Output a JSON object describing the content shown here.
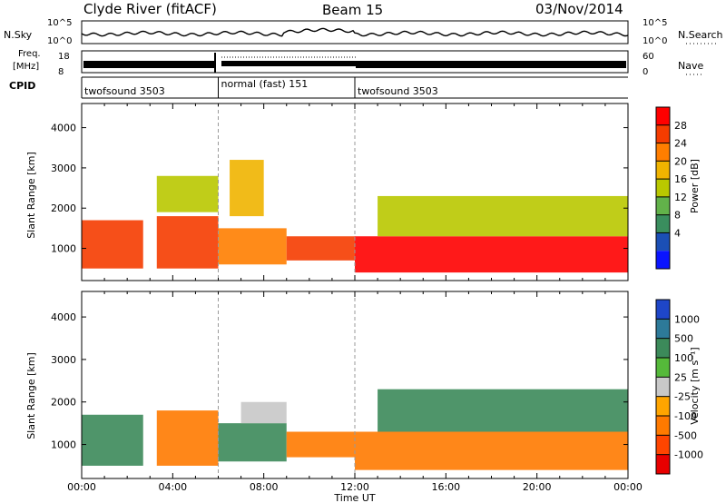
{
  "header": {
    "station": "Clyde River (fitACF)",
    "beam": "Beam 15",
    "date": "03/Nov/2014"
  },
  "top_panels": {
    "nsky_label": "N.Sky",
    "nsky_ticks": [
      "10^5",
      "10^0"
    ],
    "nsearch_label": "N.Search",
    "nsearch_ticks": [
      "10^5",
      "10^0"
    ],
    "freq_label_line1": "Freq.",
    "freq_label_line2": "[MHz]",
    "freq_ticks": [
      "18",
      "8"
    ],
    "nave_label": "Nave",
    "nave_ticks": [
      "60",
      "0"
    ],
    "cpid_label": "CPID",
    "cpid_segments": [
      {
        "label": "twofsound 3503",
        "start_hour": 0,
        "end_hour": 6
      },
      {
        "label": "normal (fast) 151",
        "start_hour": 6,
        "end_hour": 12
      },
      {
        "label": "twofsound 3503",
        "start_hour": 12,
        "end_hour": 24
      }
    ]
  },
  "power_colorbar": {
    "label": "Power [dB]",
    "ticks": [
      "28",
      "24",
      "20",
      "16",
      "12",
      "8",
      "4"
    ],
    "colors": [
      "#ff0000",
      "#f53c00",
      "#ff7e00",
      "#f0b400",
      "#b9c800",
      "#62b24a",
      "#3a8e5e",
      "#1b4fb5",
      "#0a14ff"
    ]
  },
  "velocity_colorbar": {
    "label": "Velocity [m s⁻¹]",
    "ticks": [
      "1000",
      "500",
      "100",
      "25",
      "-25",
      "-100",
      "-500",
      "-1000"
    ],
    "colors": [
      "#1e46c8",
      "#2d7a99",
      "#3c8a5a",
      "#55b93a",
      "#c8c8c8",
      "#ffa500",
      "#ff7a00",
      "#ff4500",
      "#e80000"
    ]
  },
  "chart_data": {
    "type": "heatmap",
    "xlabel": "Time UT",
    "ylabel": "Slant Range [km]",
    "xlim": [
      0,
      24
    ],
    "ylim": [
      200,
      4600
    ],
    "x_tick_labels": [
      "00:00",
      "04:00",
      "08:00",
      "12:00",
      "16:00",
      "20:00",
      "00:00"
    ],
    "y_tick_labels": [
      "1000",
      "2000",
      "3000",
      "4000"
    ],
    "panels": [
      {
        "name": "Power",
        "regions": [
          {
            "t_start": 0.0,
            "t_end": 2.7,
            "r_low": 500,
            "r_high": 1700,
            "value": 26
          },
          {
            "t_start": 3.3,
            "t_end": 6.0,
            "r_low": 500,
            "r_high": 1800,
            "value": 24
          },
          {
            "t_start": 3.3,
            "t_end": 6.0,
            "r_low": 1900,
            "r_high": 2800,
            "value": 14
          },
          {
            "t_start": 6.0,
            "t_end": 9.0,
            "r_low": 600,
            "r_high": 1500,
            "value": 22
          },
          {
            "t_start": 6.5,
            "t_end": 8.0,
            "r_low": 1800,
            "r_high": 3200,
            "value": 16
          },
          {
            "t_start": 9.0,
            "t_end": 12.0,
            "r_low": 700,
            "r_high": 1300,
            "value": 24
          },
          {
            "t_start": 12.0,
            "t_end": 24.0,
            "r_low": 400,
            "r_high": 1300,
            "value": 28
          },
          {
            "t_start": 13.0,
            "t_end": 24.0,
            "r_low": 1300,
            "r_high": 2300,
            "value": 12
          }
        ]
      },
      {
        "name": "Velocity",
        "regions": [
          {
            "t_start": 0.0,
            "t_end": 2.7,
            "r_low": 500,
            "r_high": 1700,
            "value": 100
          },
          {
            "t_start": 3.3,
            "t_end": 6.0,
            "r_low": 500,
            "r_high": 1800,
            "value": -100
          },
          {
            "t_start": 6.0,
            "t_end": 9.0,
            "r_low": 600,
            "r_high": 1500,
            "value": 100
          },
          {
            "t_start": 7.0,
            "t_end": 9.0,
            "r_low": 1500,
            "r_high": 2000,
            "value": 0
          },
          {
            "t_start": 9.0,
            "t_end": 12.0,
            "r_low": 700,
            "r_high": 1300,
            "value": -100
          },
          {
            "t_start": 12.0,
            "t_end": 24.0,
            "r_low": 400,
            "r_high": 1300,
            "value": -100
          },
          {
            "t_start": 13.0,
            "t_end": 24.0,
            "r_low": 1300,
            "r_high": 2300,
            "value": 100
          }
        ]
      }
    ]
  }
}
